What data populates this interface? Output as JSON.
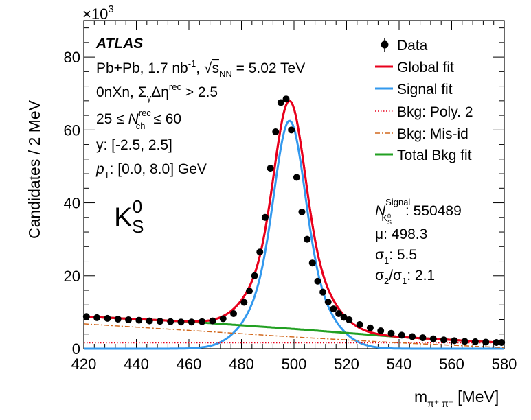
{
  "chart_data": {
    "type": "line",
    "xlabel": "m",
    "xlabel_sub": "π⁺ π⁻",
    "xlabel_unit": "[MeV]",
    "ylabel": "Candidates / 2 MeV",
    "y_multiplier": "×10",
    "y_multiplier_exp": "3",
    "xlim": [
      420,
      580
    ],
    "ylim": [
      0,
      90
    ],
    "xticks": [
      "420",
      "440",
      "460",
      "480",
      "500",
      "520",
      "540",
      "560",
      "580"
    ],
    "yticks": [
      "0",
      "20",
      "40",
      "60",
      "80"
    ],
    "xtick_values": [
      420,
      440,
      460,
      480,
      500,
      520,
      540,
      560,
      580
    ],
    "ytick_values": [
      0,
      20,
      40,
      60,
      80
    ],
    "data_points": {
      "x": [
        421,
        425,
        429,
        433,
        437,
        441,
        445,
        449,
        453,
        457,
        461,
        465,
        469,
        473,
        477,
        481,
        483,
        485,
        487,
        489,
        491,
        493,
        495,
        497,
        499,
        501,
        503,
        505,
        507,
        509,
        511,
        513,
        515,
        517,
        519,
        521,
        525,
        529,
        533,
        537,
        541,
        545,
        549,
        553,
        557,
        561,
        565,
        569,
        573,
        577,
        579
      ],
      "y": [
        8.8,
        8.5,
        8.3,
        8.1,
        7.9,
        7.8,
        7.6,
        7.5,
        7.4,
        7.3,
        7.3,
        7.4,
        7.6,
        8.2,
        9.6,
        12.7,
        15.8,
        20.0,
        26.5,
        36.0,
        49.5,
        59.5,
        67.5,
        68.5,
        60.0,
        47.0,
        37.5,
        30.0,
        23.5,
        18.5,
        15.5,
        12.8,
        10.9,
        9.6,
        8.6,
        7.9,
        6.6,
        5.7,
        4.9,
        4.2,
        3.7,
        3.3,
        3.0,
        2.7,
        2.4,
        2.2,
        2.0,
        1.9,
        1.8,
        1.7,
        1.7
      ]
    },
    "series": [
      {
        "name": "Global fit",
        "color": "#e8001c"
      },
      {
        "name": "Signal fit",
        "color": "#3399ee"
      },
      {
        "name": "Bkg: Poly. 2",
        "color": "#e8001c",
        "style": "dotted",
        "x": [
          420,
          580
        ],
        "values": [
          1.6,
          1.6
        ]
      },
      {
        "name": "Bkg: Mis-id",
        "color": "#d2691e",
        "style": "dashdot",
        "x": [
          420,
          460,
          500,
          540,
          580
        ],
        "values": [
          6.8,
          5.0,
          3.2,
          1.6,
          0.3
        ]
      },
      {
        "name": "Total Bkg fit",
        "color": "#22a022",
        "x": [
          420,
          460,
          500,
          540,
          580
        ],
        "values": [
          8.8,
          7.4,
          5.4,
          3.2,
          1.6
        ]
      }
    ],
    "fit_params": {
      "mu": 498.3,
      "sigma1": 5.5,
      "ratio": 2.1,
      "signal_amplitude": 62.5
    },
    "legend": {
      "data": "Data",
      "global": "Global fit",
      "signal": "Signal fit",
      "poly": "Bkg: Poly. 2",
      "misid": "Bkg: Mis-id",
      "total": "Total Bkg fit"
    },
    "info": {
      "atlas": "ATLAS",
      "system": "Pb+Pb, 1.7 nb",
      "system_exp": "-1",
      "sqrt_label": "s",
      "sqrt_sub": "NN",
      "energy": " = 5.02 TeV",
      "line2_a": "0nXn, Σ",
      "line2_sub": "γ",
      "line2_b": "Δη",
      "line2_sup": "rec",
      "line2_c": " > 2.5",
      "line3_a": "25 ≤ ",
      "line3_N": "N",
      "line3_sup": "rec",
      "line3_sub": "ch",
      "line3_b": " ≤ 60",
      "line4": "y: [-2.5, 2.5]",
      "line5_p": "p",
      "line5_sub": "T",
      "line5_b": ": [0.0, 8.0] GeV"
    },
    "particle": {
      "K": "K",
      "sup": "0",
      "sub": "S"
    },
    "stats": {
      "N": "N",
      "N_sup": "Signal",
      "N_sub": "K",
      "N_subsub": "0",
      "N_subsub2": "S",
      "N_value": ": 550489",
      "mu": "μ: 498.3",
      "sigma1_a": "σ",
      "sigma1_sub": "1",
      "sigma1_b": ": 5.5",
      "ratio_a": "σ",
      "ratio_sub1": "2",
      "ratio_mid": "/σ",
      "ratio_sub2": "1",
      "ratio_b": ": 2.1"
    }
  }
}
